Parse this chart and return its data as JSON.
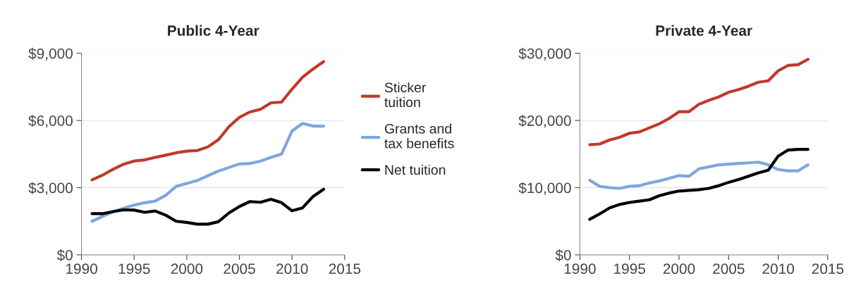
{
  "chart_data": [
    {
      "type": "line",
      "title": "Public 4-Year",
      "x": [
        1991,
        1992,
        1993,
        1994,
        1995,
        1996,
        1997,
        1998,
        1999,
        2000,
        2001,
        2002,
        2003,
        2004,
        2005,
        2006,
        2007,
        2008,
        2009,
        2010,
        2011,
        2012,
        2013
      ],
      "series": [
        {
          "name": "Sticker\ntuition",
          "color": "#c0392b",
          "values": [
            3350,
            3560,
            3820,
            4050,
            4190,
            4240,
            4350,
            4450,
            4560,
            4630,
            4660,
            4820,
            5140,
            5720,
            6140,
            6380,
            6500,
            6790,
            6820,
            7400,
            7930,
            8300,
            8630
          ]
        },
        {
          "name": "Grants and\ntax benefits",
          "color": "#7ea6e0",
          "values": [
            1500,
            1720,
            1930,
            2080,
            2220,
            2330,
            2400,
            2660,
            3060,
            3190,
            3320,
            3530,
            3740,
            3900,
            4060,
            4080,
            4190,
            4350,
            4500,
            5530,
            5870,
            5750,
            5750
          ]
        },
        {
          "name": "Net tuition",
          "color": "#000000",
          "values": [
            1840,
            1840,
            1930,
            2010,
            2000,
            1900,
            1960,
            1770,
            1500,
            1450,
            1370,
            1370,
            1480,
            1870,
            2160,
            2380,
            2350,
            2480,
            2330,
            1970,
            2100,
            2610,
            2930
          ]
        }
      ],
      "xlim": [
        1990,
        2015
      ],
      "xticks": [
        1990,
        1995,
        2000,
        2005,
        2010,
        2015
      ],
      "ylim": [
        0,
        9000
      ],
      "yticks": [
        {
          "value": 0,
          "label": "$0"
        },
        {
          "value": 3000,
          "label": "$3,000"
        },
        {
          "value": 6000,
          "label": "$6,000"
        },
        {
          "value": 9000,
          "label": "$9,000"
        }
      ],
      "grid": "y",
      "legend": "right",
      "line_style": "solid",
      "marker": "none"
    },
    {
      "type": "line",
      "title": "Private 4-Year",
      "x": [
        1991,
        1992,
        1993,
        1994,
        1995,
        1996,
        1997,
        1998,
        1999,
        2000,
        2001,
        2002,
        2003,
        2004,
        2005,
        2006,
        2007,
        2008,
        2009,
        2010,
        2011,
        2012,
        2013
      ],
      "series": [
        {
          "color": "#c0392b",
          "values": [
            16400,
            16500,
            17100,
            17500,
            18100,
            18300,
            18900,
            19500,
            20300,
            21300,
            21300,
            22400,
            23000,
            23500,
            24200,
            24600,
            25100,
            25700,
            25900,
            27400,
            28200,
            28300,
            29100
          ]
        },
        {
          "color": "#7ea6e0",
          "values": [
            11100,
            10200,
            10000,
            9900,
            10200,
            10300,
            10700,
            11000,
            11400,
            11800,
            11700,
            12800,
            13100,
            13400,
            13500,
            13600,
            13700,
            13800,
            13400,
            12700,
            12500,
            12500,
            13400
          ]
        },
        {
          "color": "#000000",
          "values": [
            5300,
            6100,
            7000,
            7500,
            7800,
            8000,
            8200,
            8800,
            9200,
            9500,
            9600,
            9700,
            9900,
            10300,
            10800,
            11200,
            11700,
            12200,
            12600,
            14700,
            15600,
            15700,
            15700
          ]
        }
      ],
      "xlim": [
        1990,
        2015
      ],
      "xticks": [
        1990,
        1995,
        2000,
        2005,
        2010,
        2015
      ],
      "ylim": [
        0,
        30000
      ],
      "yticks": [
        {
          "value": 0,
          "label": "$0"
        },
        {
          "value": 10000,
          "label": "$10,000"
        },
        {
          "value": 20000,
          "label": "$20,000"
        },
        {
          "value": 30000,
          "label": "$30,000"
        }
      ],
      "grid": "y",
      "legend": false,
      "line_style": "solid",
      "marker": "none"
    }
  ]
}
